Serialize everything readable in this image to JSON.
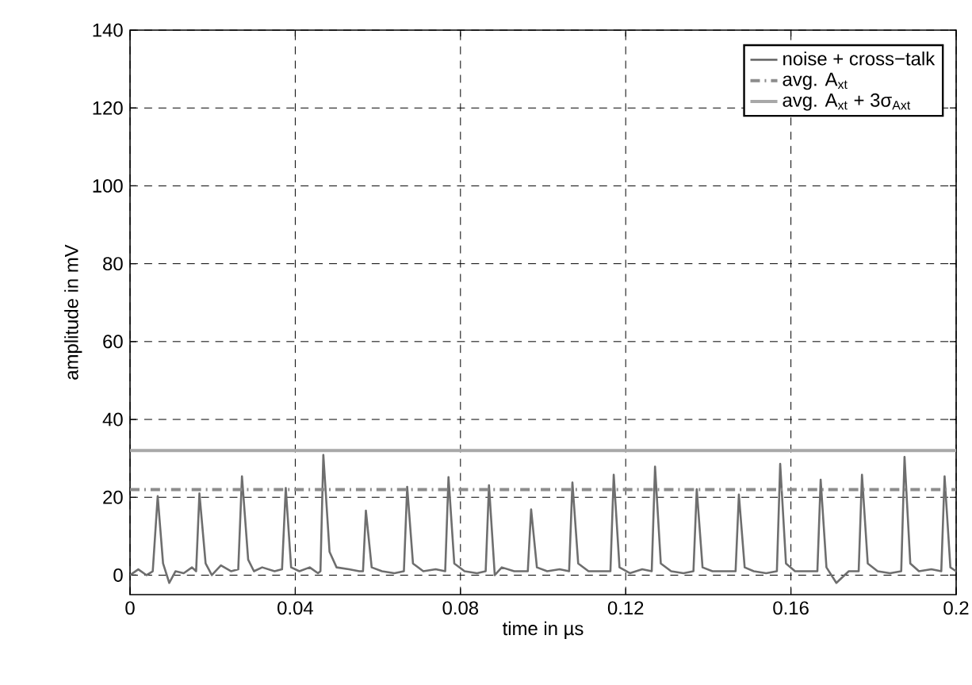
{
  "chart_data": {
    "type": "line",
    "xlabel": "time in µs",
    "ylabel": "amplitude in mV",
    "xlim": [
      0,
      0.2
    ],
    "ylim": [
      -5,
      140
    ],
    "xticks": [
      0,
      0.04,
      0.08,
      0.12,
      0.16,
      0.2
    ],
    "yticks": [
      0,
      20,
      40,
      60,
      80,
      100,
      120,
      140
    ],
    "grid": true,
    "legend": "top right",
    "series": [
      {
        "name": "noise + cross−talk",
        "color": "#6e6e6e",
        "line_style": "solid",
        "x": [
          0,
          0.002,
          0.004,
          0.0055,
          0.0067,
          0.008,
          0.0095,
          0.011,
          0.013,
          0.015,
          0.016,
          0.0168,
          0.0183,
          0.0198,
          0.022,
          0.0245,
          0.0262,
          0.0271,
          0.0286,
          0.03,
          0.032,
          0.035,
          0.0368,
          0.0377,
          0.039,
          0.041,
          0.0435,
          0.0455,
          0.0461,
          0.0468,
          0.0483,
          0.05,
          0.053,
          0.0555,
          0.0564,
          0.0571,
          0.0585,
          0.061,
          0.064,
          0.0663,
          0.0671,
          0.0685,
          0.071,
          0.074,
          0.0763,
          0.0771,
          0.0785,
          0.081,
          0.084,
          0.0861,
          0.0869,
          0.0883,
          0.09,
          0.093,
          0.0963,
          0.0971,
          0.0985,
          0.101,
          0.104,
          0.1063,
          0.1071,
          0.1085,
          0.111,
          0.114,
          0.1163,
          0.1171,
          0.1185,
          0.121,
          0.124,
          0.1263,
          0.1271,
          0.1285,
          0.131,
          0.134,
          0.1364,
          0.1372,
          0.1386,
          0.141,
          0.144,
          0.1466,
          0.1474,
          0.1488,
          0.151,
          0.154,
          0.1566,
          0.1574,
          0.1588,
          0.161,
          0.164,
          0.1664,
          0.1672,
          0.1686,
          0.171,
          0.174,
          0.1764,
          0.1772,
          0.1786,
          0.181,
          0.184,
          0.1867,
          0.1875,
          0.1889,
          0.191,
          0.194,
          0.1964,
          0.1972,
          0.1986,
          0.2
        ],
        "values": [
          0,
          1.5,
          0,
          1,
          20.3,
          3,
          -2,
          1,
          0.5,
          2,
          1,
          21,
          3,
          0,
          2.5,
          1,
          1.5,
          25.4,
          4,
          1,
          2,
          1,
          1.5,
          22.4,
          2,
          1,
          2,
          0.5,
          1,
          30.9,
          6,
          2,
          1.5,
          1,
          1,
          16.6,
          2,
          1,
          0.5,
          1,
          22.7,
          3,
          1,
          1.5,
          1,
          25.2,
          3,
          1,
          0.5,
          1,
          23.1,
          0,
          2,
          1,
          1,
          16.9,
          2,
          1,
          1.5,
          1,
          23.8,
          3,
          1,
          1,
          1,
          25.8,
          2,
          0.5,
          1.5,
          1,
          27.9,
          3,
          1,
          0.5,
          1,
          22.1,
          2,
          1,
          1,
          1,
          20.7,
          2,
          1,
          0.5,
          1,
          28.6,
          3,
          1,
          1,
          1,
          24.5,
          2,
          -2,
          1,
          1,
          25.8,
          3,
          1,
          0.5,
          1,
          30.4,
          3,
          1,
          1.5,
          1,
          25.4,
          2,
          1
        ]
      },
      {
        "name": "avg. A$_{xt}$",
        "color": "#8c8c8c",
        "line_style": "dashed",
        "x": [
          0,
          0.2
        ],
        "values": [
          22,
          22
        ]
      },
      {
        "name": "avg. A$_{xt}$ + 3σ$_{Axt}$",
        "color": "#a8a8a8",
        "line_style": "solid",
        "x": [
          0,
          0.2
        ],
        "values": [
          32,
          32
        ]
      }
    ]
  }
}
